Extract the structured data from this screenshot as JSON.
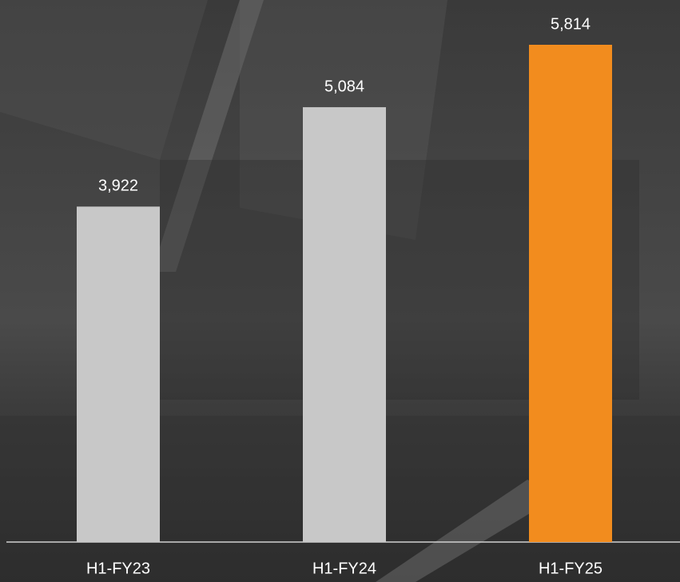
{
  "chart_data": {
    "type": "bar",
    "categories": [
      "H1-FY23",
      "H1-FY24",
      "H1-FY25"
    ],
    "values": [
      3922,
      5084,
      5814
    ],
    "value_labels": [
      "3,922",
      "5,084",
      "5,814"
    ],
    "colors": [
      "#c8c8c8",
      "#c8c8c8",
      "#f28c1e"
    ]
  }
}
